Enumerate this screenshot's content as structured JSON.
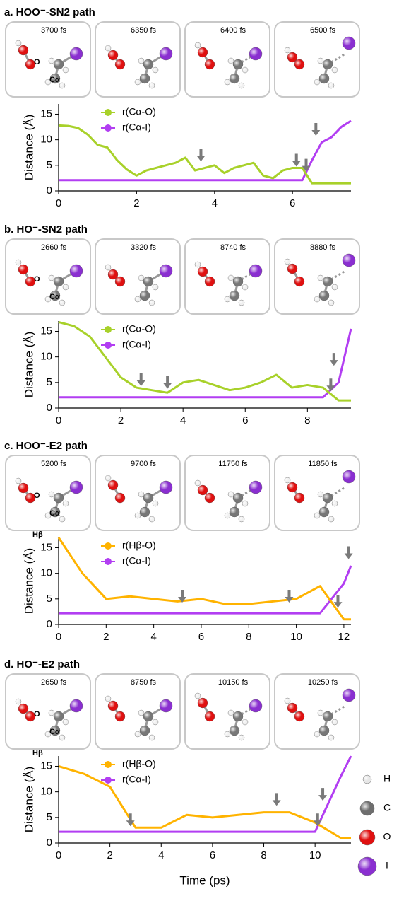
{
  "chart_data": [
    {
      "type": "line",
      "title": "a. HOO⁻-SN2 path",
      "ylabel": "Distance (Å)",
      "snapshots": [
        "3700 fs",
        "6350 fs",
        "6400 fs",
        "6500 fs"
      ],
      "atom_labels": [
        "O",
        "Cα"
      ],
      "x": [
        0,
        0.25,
        0.5,
        0.75,
        1,
        1.25,
        1.5,
        1.75,
        2,
        2.25,
        2.5,
        2.75,
        3,
        3.25,
        3.5,
        3.75,
        4,
        4.25,
        4.5,
        4.75,
        5,
        5.25,
        5.5,
        5.75,
        6,
        6.25,
        6.5,
        6.75,
        7,
        7.25,
        7.5
      ],
      "series": [
        {
          "name": "r(Cα-O)",
          "color": "#a8d12a",
          "values": [
            12.8,
            12.7,
            12.3,
            11,
            9,
            8.5,
            6,
            4.2,
            3,
            4,
            4.5,
            5,
            5.5,
            6.5,
            4,
            4.5,
            5,
            3.5,
            4.5,
            5,
            5.5,
            3,
            2.5,
            4,
            4.5,
            4.5,
            1.5,
            1.5,
            1.5,
            1.5,
            1.5
          ]
        },
        {
          "name": "r(Cα-I)",
          "color": "#b23ef2",
          "values": [
            2.1,
            2.1,
            2.1,
            2.1,
            2.1,
            2.1,
            2.1,
            2.1,
            2.1,
            2.1,
            2.1,
            2.1,
            2.1,
            2.1,
            2.1,
            2.1,
            2.1,
            2.1,
            2.1,
            2.1,
            2.1,
            2.1,
            2.1,
            2.1,
            2.1,
            2.1,
            6,
            9.5,
            10.5,
            12.5,
            13.7
          ]
        }
      ],
      "arrows": [
        {
          "x": 3.65,
          "y": 5.5
        },
        {
          "x": 6.1,
          "y": 4.5
        },
        {
          "x": 6.35,
          "y": 3.5
        },
        {
          "x": 6.6,
          "y": 10.5
        }
      ],
      "xlim": [
        0,
        7.5
      ],
      "ylim": [
        0,
        17
      ],
      "xticks": [
        0,
        2,
        4,
        6
      ],
      "yticks": [
        0,
        5,
        10,
        15
      ]
    },
    {
      "type": "line",
      "title": "b. HO⁻-SN2 path",
      "ylabel": "Distance (Å)",
      "snapshots": [
        "2660 fs",
        "3320 fs",
        "8740 fs",
        "8880 fs"
      ],
      "atom_labels": [
        "O",
        "Cα"
      ],
      "x": [
        0,
        0.5,
        1,
        1.5,
        2,
        2.5,
        3,
        3.5,
        4,
        4.5,
        5,
        5.5,
        6,
        6.5,
        7,
        7.5,
        8,
        8.5,
        9,
        9.4
      ],
      "series": [
        {
          "name": "r(Cα-O)",
          "color": "#a8d12a",
          "values": [
            16.8,
            16,
            14,
            10,
            6,
            4,
            3.5,
            3,
            5,
            5.5,
            4.5,
            3.5,
            4,
            5,
            6.5,
            4,
            4.5,
            4,
            1.5,
            1.5
          ]
        },
        {
          "name": "r(Cα-I)",
          "color": "#b23ef2",
          "values": [
            2.1,
            2.1,
            2.1,
            2.1,
            2.1,
            2.1,
            2.1,
            2.1,
            2.1,
            2.1,
            2.1,
            2.1,
            2.1,
            2.1,
            2.1,
            2.1,
            2.1,
            2.1,
            5,
            15.5
          ]
        }
      ],
      "arrows": [
        {
          "x": 2.65,
          "y": 4
        },
        {
          "x": 3.5,
          "y": 3.5
        },
        {
          "x": 8.75,
          "y": 3
        },
        {
          "x": 8.85,
          "y": 8
        }
      ],
      "xlim": [
        0,
        9.4
      ],
      "ylim": [
        0,
        17
      ],
      "xticks": [
        0,
        2,
        4,
        6,
        8
      ],
      "yticks": [
        0,
        5,
        10,
        15
      ]
    },
    {
      "type": "line",
      "title": "c. HOO⁻-E2 path",
      "ylabel": "Distance (Å)",
      "snapshots": [
        "5200 fs",
        "9700 fs",
        "11750 fs",
        "11850 fs"
      ],
      "atom_labels": [
        "O",
        "Cα",
        "Hβ"
      ],
      "x": [
        0,
        1,
        2,
        3,
        4,
        5,
        6,
        7,
        8,
        9,
        10,
        11,
        12,
        12.3
      ],
      "series": [
        {
          "name": "r(Hβ-O)",
          "color": "#ffb300",
          "values": [
            17,
            10,
            5,
            5.5,
            5,
            4.5,
            5,
            4,
            4,
            4.5,
            5,
            7.5,
            1,
            1
          ]
        },
        {
          "name": "r(Cα-I)",
          "color": "#b23ef2",
          "values": [
            2.2,
            2.2,
            2.2,
            2.2,
            2.2,
            2.2,
            2.2,
            2.2,
            2.2,
            2.2,
            2.2,
            2.2,
            8,
            11.5
          ]
        }
      ],
      "arrows": [
        {
          "x": 5.2,
          "y": 4
        },
        {
          "x": 9.7,
          "y": 4
        },
        {
          "x": 11.75,
          "y": 3
        },
        {
          "x": 12.2,
          "y": 12.5
        }
      ],
      "xlim": [
        0,
        12.3
      ],
      "ylim": [
        0,
        17
      ],
      "xticks": [
        0,
        2,
        4,
        6,
        8,
        10,
        12
      ],
      "yticks": [
        0,
        5,
        10,
        15
      ]
    },
    {
      "type": "line",
      "title": "d. HO⁻-E2 path",
      "ylabel": "Distance (Å)",
      "xlabel": "Time (ps)",
      "snapshots": [
        "2650 fs",
        "8750 fs",
        "10150 fs",
        "10250 fs"
      ],
      "atom_labels": [
        "O",
        "Cα",
        "Hβ"
      ],
      "x": [
        0,
        1,
        2,
        3,
        4,
        5,
        6,
        7,
        8,
        9,
        10,
        11,
        11.4
      ],
      "series": [
        {
          "name": "r(Hβ-O)",
          "color": "#ffb300",
          "values": [
            15,
            13.5,
            11,
            3,
            3,
            5.5,
            5,
            5.5,
            6,
            6,
            4,
            1,
            1
          ]
        },
        {
          "name": "r(Cα-I)",
          "color": "#b23ef2",
          "values": [
            2.2,
            2.2,
            2.2,
            2.2,
            2.2,
            2.2,
            2.2,
            2.2,
            2.2,
            2.2,
            2.2,
            13,
            17
          ]
        }
      ],
      "arrows": [
        {
          "x": 2.8,
          "y": 3
        },
        {
          "x": 8.5,
          "y": 7
        },
        {
          "x": 10.1,
          "y": 3
        },
        {
          "x": 10.3,
          "y": 8
        }
      ],
      "xlim": [
        0,
        11.4
      ],
      "ylim": [
        0,
        17
      ],
      "xticks": [
        0,
        2,
        4,
        6,
        8,
        10
      ],
      "yticks": [
        0,
        5,
        10,
        15
      ]
    }
  ],
  "atom_legend": [
    {
      "label": "H",
      "color": "#e6e6e6"
    },
    {
      "label": "C",
      "color": "#6e6e6e"
    },
    {
      "label": "O",
      "color": "#e01010"
    },
    {
      "label": "I",
      "color": "#8a2fd0"
    }
  ]
}
